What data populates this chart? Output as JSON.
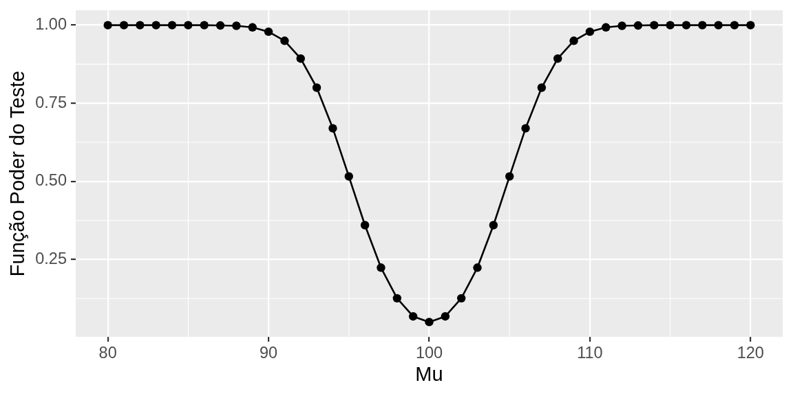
{
  "chart_data": {
    "type": "line",
    "xlabel": "Mu",
    "ylabel": "Função Poder do Teste",
    "x": [
      80,
      81,
      82,
      83,
      84,
      85,
      86,
      87,
      88,
      89,
      90,
      91,
      92,
      93,
      94,
      95,
      96,
      97,
      98,
      99,
      100,
      101,
      102,
      103,
      104,
      105,
      106,
      107,
      108,
      109,
      110,
      111,
      112,
      113,
      114,
      115,
      116,
      117,
      118,
      119,
      120
    ],
    "values": [
      1,
      1,
      1,
      1,
      1,
      1,
      1,
      0.999,
      0.998,
      0.993,
      0.979,
      0.95,
      0.893,
      0.8,
      0.67,
      0.516,
      0.36,
      0.224,
      0.126,
      0.068,
      0.05,
      0.068,
      0.126,
      0.224,
      0.36,
      0.516,
      0.67,
      0.8,
      0.893,
      0.95,
      0.979,
      0.993,
      0.998,
      0.999,
      1,
      1,
      1,
      1,
      1,
      1,
      1
    ],
    "color": "#000000",
    "marker": "circle",
    "line_style": "solid",
    "grid": true,
    "xlim": [
      78,
      122
    ],
    "ylim": [
      0.0025,
      1.0475
    ],
    "xticks": [
      80,
      90,
      100,
      110,
      120
    ],
    "yticks": [
      0.25,
      {
        "value": 0.5,
        "label": "0.50"
      },
      0.75,
      {
        "value": 1,
        "label": "1.00"
      }
    ]
  }
}
